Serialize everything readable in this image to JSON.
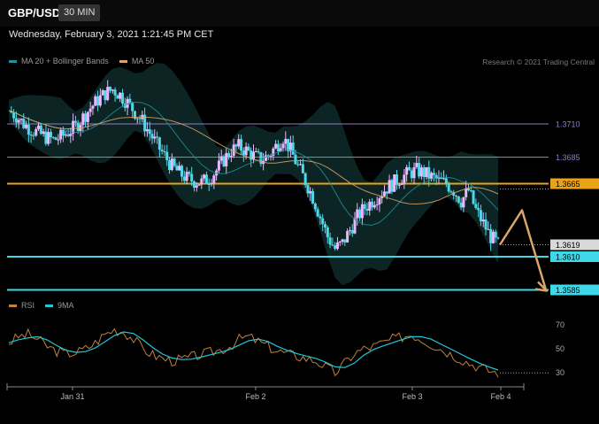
{
  "header": {
    "symbol": "GBP/USD",
    "timeframe": "30 MIN"
  },
  "datetime": "Wednesday, February 3, 2021 1:21:45 PM CET",
  "legend_main": [
    {
      "label": "MA 20 + Bollinger Bands",
      "color": "#1f8f9a"
    },
    {
      "label": "MA 50",
      "color": "#d9a56b"
    }
  ],
  "legend_rsi": [
    {
      "label": "RSI",
      "color": "#c08040"
    },
    {
      "label": "9MA",
      "color": "#1fc8d6"
    }
  ],
  "credit": "Research © 2021 Trading Central",
  "chart_data": [
    {
      "type": "candlestick",
      "title": "GBP/USD",
      "x_tick_labels": [
        "Jan 31",
        "Feb 2",
        "Feb 3",
        "Feb 4"
      ],
      "ylim": [
        1.358,
        1.375
      ],
      "overlays": [
        "MA 20 + Bollinger Bands",
        "MA 50"
      ],
      "close_values": [
        1.372,
        1.3716,
        1.371,
        1.3706,
        1.3703,
        1.37,
        1.3698,
        1.37,
        1.3704,
        1.3708,
        1.3715,
        1.3722,
        1.3728,
        1.3733,
        1.3736,
        1.3732,
        1.3726,
        1.3719,
        1.3712,
        1.3703,
        1.3694,
        1.3686,
        1.3678,
        1.3673,
        1.3669,
        1.3667,
        1.3666,
        1.3669,
        1.3675,
        1.3683,
        1.369,
        1.3693,
        1.369,
        1.3686,
        1.3683,
        1.3686,
        1.3693,
        1.37,
        1.369,
        1.3678,
        1.3667,
        1.3655,
        1.364,
        1.3625,
        1.3616,
        1.362,
        1.363,
        1.364,
        1.3647,
        1.3652,
        1.3657,
        1.3662,
        1.3666,
        1.367,
        1.3673,
        1.3675,
        1.3673,
        1.367,
        1.3667,
        1.3665,
        1.366,
        1.3652,
        1.366,
        1.3645,
        1.3635,
        1.3625,
        1.3619
      ],
      "horizontal_levels": [
        {
          "label": "1.3710",
          "value": 1.371,
          "color": "#8e7cc3",
          "style": "thin"
        },
        {
          "label": "1.3685",
          "value": 1.3685,
          "color": "#8e7cc3",
          "style": "thin"
        },
        {
          "label": "1.3665",
          "value": 1.3665,
          "color": "#e8a317",
          "style": "thick"
        },
        {
          "label": "1.3610",
          "value": 1.361,
          "color": "#3dd9e8",
          "style": "thick"
        },
        {
          "label": "1.3585",
          "value": 1.3585,
          "color": "#3dd9e8",
          "style": "thick"
        }
      ],
      "last_price": {
        "label": "1.3619",
        "value": 1.3619
      },
      "forecast_path": [
        1.3619,
        1.3645,
        1.3585
      ],
      "forecast_color": "#d9a56b"
    },
    {
      "type": "line",
      "series": [
        {
          "name": "RSI",
          "color": "#c08040"
        },
        {
          "name": "9MA",
          "color": "#1fc8d6"
        }
      ],
      "ylim": [
        25,
        75
      ],
      "y_tick_labels": [
        "70",
        "50",
        "30"
      ],
      "rsi_values": [
        55,
        60,
        62,
        58,
        52,
        48,
        46,
        47,
        50,
        55,
        62,
        66,
        64,
        58,
        50,
        45,
        42,
        40,
        41,
        43,
        45,
        47,
        49,
        52,
        58,
        60,
        56,
        52,
        48,
        46,
        44,
        42,
        40,
        35,
        30,
        38,
        46,
        50,
        52,
        55,
        58,
        60,
        62,
        58,
        54,
        50,
        46,
        42,
        38,
        35,
        32,
        30
      ]
    }
  ]
}
